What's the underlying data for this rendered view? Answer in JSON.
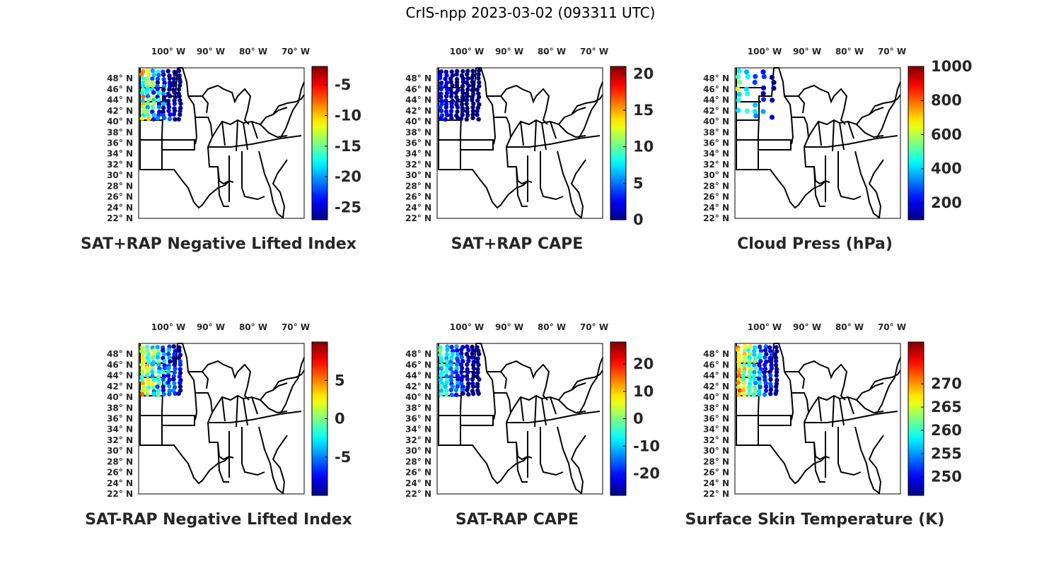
{
  "figure_title": "CrIS-npp 2023-03-02 (093311 UTC)",
  "lon_labels": [
    "100° W",
    "90° W",
    "80° W",
    "70° W"
  ],
  "lat_labels": [
    "48° N",
    "46° N",
    "44° N",
    "42° N",
    "40° N",
    "38° N",
    "36° N",
    "34° N",
    "32° N",
    "30° N",
    "28° N",
    "26° N",
    "24° N",
    "22° N"
  ],
  "map_extent": {
    "lon_min": -107,
    "lon_max": -68,
    "lat_min": 22,
    "lat_max": 50
  },
  "panels": [
    {
      "id": "neg-li-sum",
      "title": "SAT+RAP Negative Lifted Index",
      "clim": [
        -27,
        -2
      ],
      "ticks": [
        "-5",
        "-10",
        "-15",
        "-20",
        "-25"
      ],
      "tick_values": [
        -5,
        -10,
        -15,
        -20,
        -25
      ]
    },
    {
      "id": "cape-sum",
      "title": "SAT+RAP CAPE",
      "clim": [
        0,
        21
      ],
      "ticks": [
        "20",
        "15",
        "10",
        "5",
        "0"
      ],
      "tick_values": [
        20,
        15,
        10,
        5,
        0
      ]
    },
    {
      "id": "cloud-press",
      "title": "Cloud Press (hPa)",
      "clim": [
        100,
        1000
      ],
      "ticks": [
        "1000",
        "800",
        "600",
        "400",
        "200"
      ],
      "tick_values": [
        1000,
        800,
        600,
        400,
        200
      ]
    },
    {
      "id": "neg-li-diff",
      "title": "SAT-RAP Negative Lifted Index",
      "clim": [
        -10,
        10
      ],
      "ticks": [
        "5",
        "0",
        "-5"
      ],
      "tick_values": [
        5,
        0,
        -5
      ]
    },
    {
      "id": "cape-diff",
      "title": "SAT-RAP CAPE",
      "clim": [
        -28,
        28
      ],
      "ticks": [
        "20",
        "10",
        "0",
        "-10",
        "-20"
      ],
      "tick_values": [
        20,
        10,
        0,
        -10,
        -20
      ]
    },
    {
      "id": "skin-temp",
      "title": "Surface Skin Temperature (K)",
      "clim": [
        246,
        279
      ],
      "ticks": [
        "270",
        "265",
        "260",
        "255",
        "250"
      ],
      "tick_values": [
        270,
        265,
        260,
        255,
        250
      ]
    }
  ],
  "colormap": "jet",
  "state_outline_color": "#000000"
}
